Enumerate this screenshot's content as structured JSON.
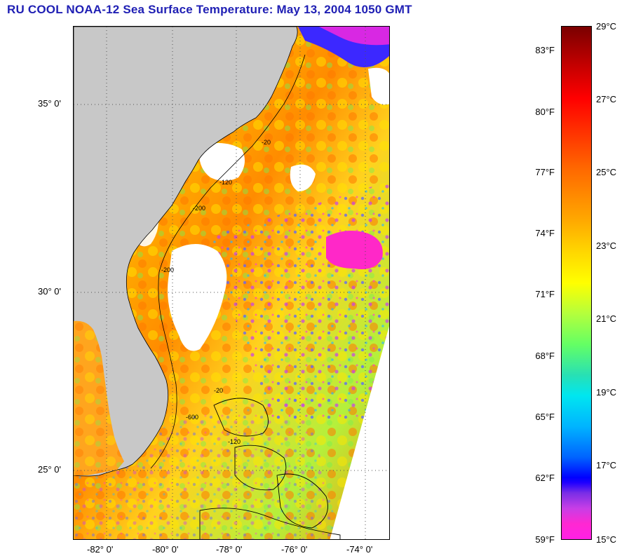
{
  "title": "RU COOL  NOAA-12  Sea Surface Temperature:  May 13, 2004 1050 GMT",
  "map": {
    "latitude_labels": [
      "35° 0'",
      "30° 0'",
      "25° 0'"
    ],
    "longitude_labels": [
      "-82° 0'",
      "-80° 0'",
      "-78° 0'",
      "-76° 0'",
      "-74° 0'"
    ],
    "land_color": "#c8c8c8",
    "cloud_color": "#ffffff",
    "isobath_labels": [
      "-20",
      "-120",
      "-200",
      "-200",
      "-20",
      "-600",
      "-120"
    ],
    "isobath_sample": "-200"
  },
  "colorbar": {
    "fahrenheit_labels": [
      "83°F",
      "80°F",
      "77°F",
      "74°F",
      "71°F",
      "68°F",
      "65°F",
      "62°F",
      "59°F"
    ],
    "celsius_labels": [
      "29°C",
      "27°C",
      "25°C",
      "23°C",
      "21°C",
      "19°C",
      "17°C",
      "15°C"
    ]
  }
}
